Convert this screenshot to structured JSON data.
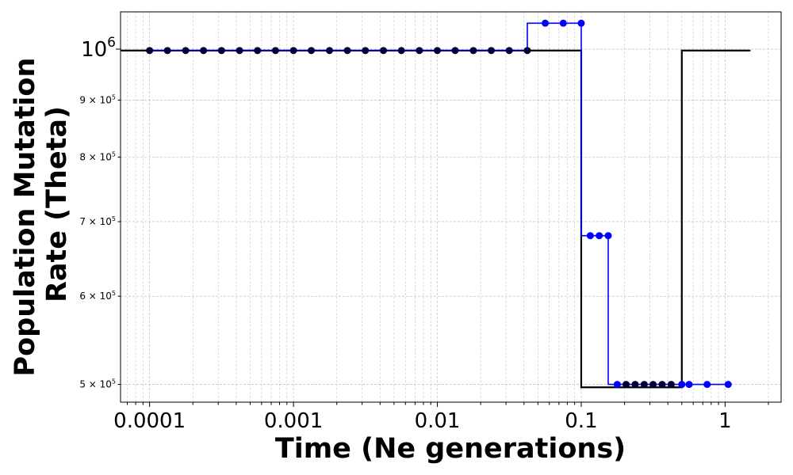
{
  "chart_data": {
    "type": "line",
    "xlabel": "Time (Ne generations)",
    "ylabel_line1": "Population Mutation",
    "ylabel_line2": "Rate (Theta)",
    "xscale": "log",
    "yscale": "log",
    "xlim": [
      6.28e-05,
      2.45
    ],
    "ylim": [
      482000,
      1080000
    ],
    "grid": true,
    "x_ticks": [
      {
        "value": 0.0001,
        "label": "0.0001"
      },
      {
        "value": 0.001,
        "label": "0.001"
      },
      {
        "value": 0.01,
        "label": "0.01"
      },
      {
        "value": 0.1,
        "label": "0.1"
      },
      {
        "value": 1,
        "label": "1"
      }
    ],
    "y_ticks": [
      {
        "value": 1000000,
        "base": "10",
        "exp": "6",
        "size": "big"
      },
      {
        "value": 900000,
        "base": "9 × 10",
        "exp": "5",
        "size": "small"
      },
      {
        "value": 800000,
        "base": "8 × 10",
        "exp": "5",
        "size": "small"
      },
      {
        "value": 700000,
        "base": "7 × 10",
        "exp": "5",
        "size": "small"
      },
      {
        "value": 600000,
        "base": "6 × 10",
        "exp": "5",
        "size": "small"
      },
      {
        "value": 500000,
        "base": "5 × 10",
        "exp": "5",
        "size": "small"
      }
    ],
    "series": [
      {
        "color": "#000000",
        "style": "step",
        "x": [
          6.28e-05,
          0.1,
          0.1,
          0.5,
          0.5,
          1.5
        ],
        "y": [
          997000,
          997000,
          497000,
          497000,
          997000,
          997000
        ]
      },
      {
        "color": "#0000ff",
        "style": "step-markers",
        "x": [
          0.0001,
          0.000133,
          0.000178,
          0.000237,
          0.000316,
          0.000422,
          0.000562,
          0.00075,
          0.001,
          0.00133,
          0.00178,
          0.00237,
          0.00316,
          0.00422,
          0.00562,
          0.0075,
          0.01,
          0.0133,
          0.0178,
          0.0237,
          0.0316,
          0.0422,
          0.0562,
          0.075,
          0.1,
          0.1156,
          0.1334,
          0.154,
          0.178,
          0.205,
          0.237,
          0.274,
          0.316,
          0.365,
          0.422,
          0.5,
          0.562,
          0.75,
          1.05
        ],
        "y": [
          997000,
          997000,
          997000,
          997000,
          997000,
          997000,
          997000,
          997000,
          997000,
          997000,
          997000,
          997000,
          997000,
          997000,
          997000,
          997000,
          997000,
          997000,
          997000,
          997000,
          997000,
          997000,
          1055000,
          1055000,
          1055000,
          680000,
          680000,
          680000,
          500000,
          500000,
          500000,
          500000,
          500000,
          500000,
          500000,
          500000,
          500000,
          500000,
          500000
        ]
      }
    ]
  }
}
